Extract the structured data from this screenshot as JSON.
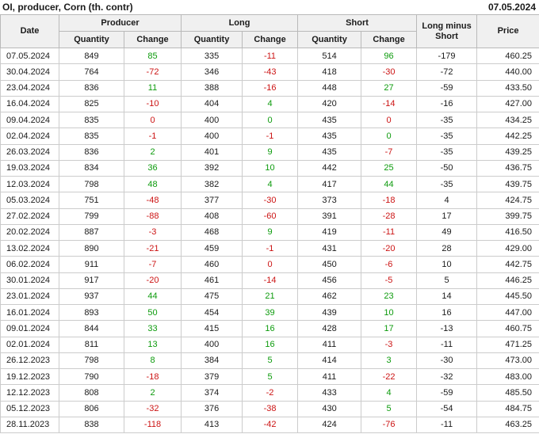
{
  "title": "OI, producer, Corn (th. contr)",
  "report_date": "07.05.2024",
  "header": {
    "date": "Date",
    "producer": "Producer",
    "long": "Long",
    "short": "Short",
    "quantity": "Quantity",
    "change": "Change",
    "long_minus_short": "Long minus Short",
    "price": "Price"
  },
  "colors": {
    "positive": "#0d9b0d",
    "negative": "#cc1414",
    "header_bg": "#f0f0f0",
    "grid_line": "#cccccc",
    "header_border": "#b9b9b9",
    "text": "#1b1b1b"
  },
  "chart_data": {
    "type": "table",
    "title": "OI, producer, Corn (th. contr)",
    "as_of_date": "07.05.2024",
    "column_groups": [
      "Producer",
      "Long",
      "Short"
    ],
    "columns": [
      "Date",
      "Producer Quantity",
      "Producer Change",
      "Long Quantity",
      "Long Change",
      "Short Quantity",
      "Short Change",
      "Long minus Short",
      "Price"
    ],
    "rows": [
      [
        "07.05.2024",
        849,
        85,
        335,
        -11,
        514,
        96,
        -179,
        "460.25"
      ],
      [
        "30.04.2024",
        764,
        -72,
        346,
        -43,
        418,
        -30,
        -72,
        "440.00"
      ],
      [
        "23.04.2024",
        836,
        11,
        388,
        -16,
        448,
        27,
        -59,
        "433.50"
      ],
      [
        "16.04.2024",
        825,
        -10,
        404,
        4,
        420,
        -14,
        -16,
        "427.00"
      ],
      [
        "09.04.2024",
        835,
        0,
        400,
        0,
        435,
        0,
        -35,
        "434.25"
      ],
      [
        "02.04.2024",
        835,
        -1,
        400,
        -1,
        435,
        0,
        -35,
        "442.25"
      ],
      [
        "26.03.2024",
        836,
        2,
        401,
        9,
        435,
        -7,
        -35,
        "439.25"
      ],
      [
        "19.03.2024",
        834,
        36,
        392,
        10,
        442,
        25,
        -50,
        "436.75"
      ],
      [
        "12.03.2024",
        798,
        48,
        382,
        4,
        417,
        44,
        -35,
        "439.75"
      ],
      [
        "05.03.2024",
        751,
        -48,
        377,
        -30,
        373,
        -18,
        4,
        "424.75"
      ],
      [
        "27.02.2024",
        799,
        -88,
        408,
        -60,
        391,
        -28,
        17,
        "399.75"
      ],
      [
        "20.02.2024",
        887,
        -3,
        468,
        9,
        419,
        -11,
        49,
        "416.50"
      ],
      [
        "13.02.2024",
        890,
        -21,
        459,
        -1,
        431,
        -20,
        28,
        "429.00"
      ],
      [
        "06.02.2024",
        911,
        -7,
        460,
        0,
        450,
        -6,
        10,
        "442.75"
      ],
      [
        "30.01.2024",
        917,
        -20,
        461,
        -14,
        456,
        -5,
        5,
        "446.25"
      ],
      [
        "23.01.2024",
        937,
        44,
        475,
        21,
        462,
        23,
        14,
        "445.50"
      ],
      [
        "16.01.2024",
        893,
        50,
        454,
        39,
        439,
        10,
        16,
        "447.00"
      ],
      [
        "09.01.2024",
        844,
        33,
        415,
        16,
        428,
        17,
        -13,
        "460.75"
      ],
      [
        "02.01.2024",
        811,
        13,
        400,
        16,
        411,
        -3,
        -11,
        "471.25"
      ],
      [
        "26.12.2023",
        798,
        8,
        384,
        5,
        414,
        3,
        -30,
        "473.00"
      ],
      [
        "19.12.2023",
        790,
        -18,
        379,
        5,
        411,
        -22,
        -32,
        "483.00"
      ],
      [
        "12.12.2023",
        808,
        2,
        374,
        -2,
        433,
        4,
        -59,
        "485.50"
      ],
      [
        "05.12.2023",
        806,
        -32,
        376,
        -38,
        430,
        5,
        -54,
        "484.75"
      ],
      [
        "28.11.2023",
        838,
        -118,
        413,
        -42,
        424,
        -76,
        -11,
        "463.25"
      ]
    ],
    "change_colors": [
      [
        "green",
        "red",
        "green"
      ],
      [
        "red",
        "red",
        "red"
      ],
      [
        "green",
        "red",
        "green"
      ],
      [
        "red",
        "green",
        "red"
      ],
      [
        "red",
        "green",
        "red"
      ],
      [
        "red",
        "red",
        "green"
      ],
      [
        "green",
        "green",
        "red"
      ],
      [
        "green",
        "green",
        "green"
      ],
      [
        "green",
        "green",
        "green"
      ],
      [
        "red",
        "red",
        "red"
      ],
      [
        "red",
        "red",
        "red"
      ],
      [
        "red",
        "green",
        "red"
      ],
      [
        "red",
        "red",
        "red"
      ],
      [
        "red",
        "red",
        "red"
      ],
      [
        "red",
        "red",
        "red"
      ],
      [
        "green",
        "green",
        "green"
      ],
      [
        "green",
        "green",
        "green"
      ],
      [
        "green",
        "green",
        "green"
      ],
      [
        "green",
        "green",
        "red"
      ],
      [
        "green",
        "green",
        "green"
      ],
      [
        "red",
        "green",
        "red"
      ],
      [
        "green",
        "red",
        "green"
      ],
      [
        "red",
        "red",
        "green"
      ],
      [
        "red",
        "red",
        "red"
      ]
    ]
  }
}
